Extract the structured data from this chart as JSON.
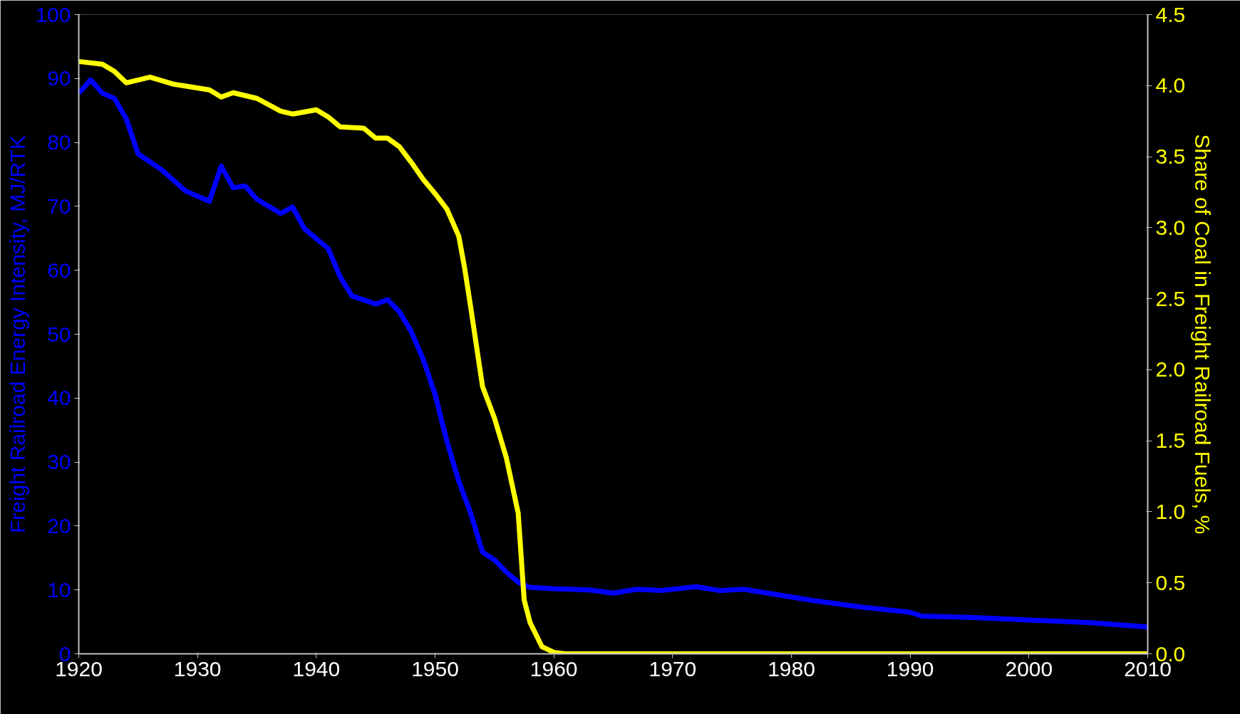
{
  "chart_data": {
    "type": "line",
    "ylabel": "Freight Railroad Energy Intensity, MJ/RTK",
    "y2label": "Share of Coal in Freight Railroad Fuels, %",
    "xlim": [
      1920,
      2010
    ],
    "xticks": [
      1920,
      1930,
      1940,
      1950,
      1960,
      1970,
      1980,
      1990,
      2000,
      2010
    ],
    "ylim": [
      0,
      100
    ],
    "yticks": [
      0,
      10,
      20,
      30,
      40,
      50,
      60,
      70,
      80,
      90,
      100
    ],
    "y2lim": [
      0,
      4.5
    ],
    "y2ticks": [
      {
        "value": 0,
        "label": "0.0"
      },
      0.5,
      {
        "value": 1,
        "label": "1.0"
      },
      1.5,
      {
        "value": 2,
        "label": "2.0"
      },
      2.5,
      {
        "value": 3,
        "label": "3.0"
      },
      3.5,
      {
        "value": 4,
        "label": "4.0"
      },
      4.5
    ],
    "grid": false,
    "marker": "none",
    "line_style": "solid",
    "series": [
      {
        "color": "#0000ff",
        "axis": "y",
        "x": [
          1920,
          1921,
          1922,
          1923,
          1924,
          1925,
          1927,
          1929,
          1931,
          1932,
          1933,
          1934,
          1935,
          1937,
          1938,
          1939,
          1941,
          1942,
          1943,
          1945,
          1946,
          1947,
          1948,
          1949,
          1950,
          1951,
          1952,
          1953,
          1954,
          1955,
          1956,
          1957,
          1958,
          1960,
          1963,
          1965,
          1967,
          1969,
          1972,
          1974,
          1976,
          1978,
          1982,
          1986,
          1988,
          1990,
          1991,
          1995,
          2000,
          2005,
          2010
        ],
        "values": [
          87.7,
          89.8,
          87.7,
          86.9,
          83.7,
          78.2,
          75.7,
          72.4,
          70.8,
          76.3,
          72.9,
          73.2,
          71.1,
          68.9,
          69.9,
          66.5,
          63.4,
          59,
          56,
          54.7,
          55.4,
          53.5,
          50.4,
          46.1,
          40.6,
          33.2,
          27,
          22,
          15.9,
          14.7,
          12.8,
          11.2,
          10.4,
          10.2,
          10,
          9.5,
          10.1,
          9.9,
          10.5,
          9.9,
          10.1,
          9.5,
          8.3,
          7.3,
          6.9,
          6.5,
          5.9,
          5.7,
          5.3,
          4.9,
          4.2
        ]
      },
      {
        "color": "#ffff00",
        "axis": "y2",
        "x": [
          1920,
          1922,
          1923,
          1924,
          1926,
          1928,
          1931,
          1932,
          1933,
          1935,
          1937,
          1938,
          1940,
          1941,
          1942,
          1944,
          1945,
          1946,
          1947,
          1948,
          1949,
          1950,
          1951,
          1952,
          1952.5,
          1953,
          1954,
          1955,
          1956,
          1957,
          1957.5,
          1958,
          1959,
          1960,
          1961,
          1970,
          1980,
          1990,
          2000,
          2010
        ],
        "values": [
          4.17,
          4.15,
          4.1,
          4.02,
          4.06,
          4.01,
          3.97,
          3.92,
          3.95,
          3.91,
          3.82,
          3.8,
          3.83,
          3.78,
          3.71,
          3.7,
          3.63,
          3.63,
          3.57,
          3.46,
          3.34,
          3.24,
          3.13,
          2.94,
          2.71,
          2.44,
          1.88,
          1.66,
          1.38,
          0.99,
          0.38,
          0.22,
          0.05,
          0.01,
          0,
          0,
          0,
          0,
          0,
          0
        ]
      }
    ]
  }
}
